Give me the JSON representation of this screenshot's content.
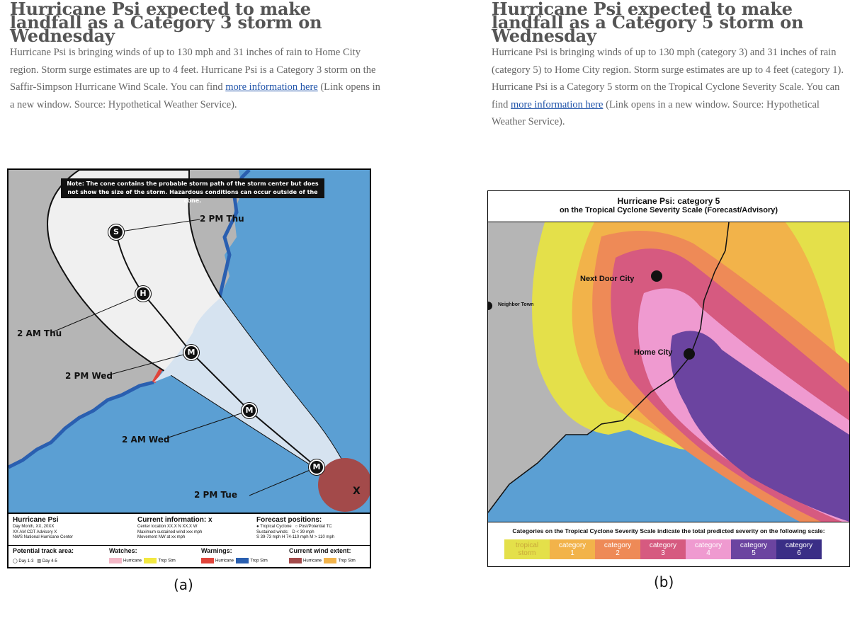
{
  "article_a": {
    "title": "Hurricane Psi expected to make landfall as a Category 3 storm on Wednesday",
    "body_text": "Hurricane Psi is bringing winds of up to 130 mph and 31 inches of rain to Home City region. Storm surge estimates are up to 4 feet. Hurricane Psi is a Category 3 storm on the Saffir-Simpson Hurricane Wind Scale. You can find ",
    "link_text": "more information here",
    "after_link": " (Link opens in a new window. Source: Hypothetical Weather Service)."
  },
  "article_b": {
    "title": "Hurricane Psi expected to make landfall as a Category 5 storm on Wednesday",
    "body_text": "Hurricane Psi is bringing winds of up to 130 mph (category 3) and 31 inches of rain (category 5) to Home City region. Storm surge estimates are up to 4 feet (category 1). Hurricane Psi is a Category 5 storm on the Tropical Cyclone Severity Scale. You can find ",
    "link_text": "more information here",
    "after_link": " (Link opens in a new window. Source: Hypothetical Weather Service)."
  },
  "map_a": {
    "cone_note": "Note: The cone contains the probable storm path of the storm center but does not show the size of the storm. Hazardous conditions can occur outside of the cone.",
    "time_labels": [
      "2 PM Thu",
      "2 AM Thu",
      "2 PM Wed",
      "2 AM Wed",
      "2 PM Tue"
    ],
    "markers": [
      "S",
      "H",
      "M",
      "M",
      "M"
    ],
    "storm_center": "X",
    "legend": {
      "storm_name": "Hurricane Psi",
      "storm_lines": [
        "Day Month, XX, 20XX",
        "XX AM CDT Advisory X",
        "NWS National Hurricane Center"
      ],
      "current_info_title": "Current information: x",
      "current_info_lines": [
        "Center location XX.X N XX.X W",
        "Maximum sustained wind xxx mph",
        "Movement NW at xx mph"
      ],
      "forecast_title": "Forecast positions:",
      "forecast_tc": "Tropical Cyclone",
      "forecast_post": "Post/Potential TC",
      "sustained_winds": "Sustained winds:",
      "wind_d": "D < 39 mph",
      "wind_s": "S 39-73 mph",
      "wind_h": "H 74-110 mph",
      "wind_m": "M > 110 mph",
      "track_title": "Potential track area:",
      "track_day13": "Day 1-3",
      "track_day45": "Day 4-5",
      "watches_title": "Watches:",
      "watch_hurricane": "Hurricane",
      "watch_trop": "Trop Stm",
      "warnings_title": "Warnings:",
      "warn_hurricane": "Hurricane",
      "warn_trop": "Trop Stm",
      "wind_extent_title": "Current wind extent:",
      "extent_hurricane": "Hurricane",
      "extent_trop": "Trop Stm"
    }
  },
  "map_b": {
    "title_line1": "Hurricane Psi: category 5",
    "title_line2": "on the Tropical Cyclone Severity Scale (Forecast/Advisory)",
    "cities": [
      "Next Door City",
      "Home City",
      "Neighbor Town"
    ],
    "legend_caption": "Categories on the Tropical Cyclone Severity Scale indicate the total predicted severity on the following scale:",
    "scale": [
      {
        "line1": "tropical",
        "line2": "storm",
        "color": "#e4e04a",
        "text": "#c9a93a"
      },
      {
        "line1": "category",
        "line2": "1",
        "color": "#f2b34a",
        "text": "#ffffff"
      },
      {
        "line1": "category",
        "line2": "2",
        "color": "#ee8a57",
        "text": "#ffffff"
      },
      {
        "line1": "category",
        "line2": "3",
        "color": "#d65a80",
        "text": "#ffffff"
      },
      {
        "line1": "category",
        "line2": "4",
        "color": "#ef9ad0",
        "text": "#ffffff"
      },
      {
        "line1": "category",
        "line2": "5",
        "color": "#6b44a0",
        "text": "#ffffff"
      },
      {
        "line1": "category",
        "line2": "6",
        "color": "#3a2e86",
        "text": "#ffffff"
      }
    ]
  },
  "panel_labels": {
    "a": "(a)",
    "b": "(b)"
  },
  "colors": {
    "ocean": "#5b9fd3",
    "land": "#b5b5b5",
    "cone": "#d6e3f0",
    "hurricane_warning": "#e0443a",
    "trop_warning": "#2a5fb0",
    "hurricane_extent": "#a34a4a"
  }
}
